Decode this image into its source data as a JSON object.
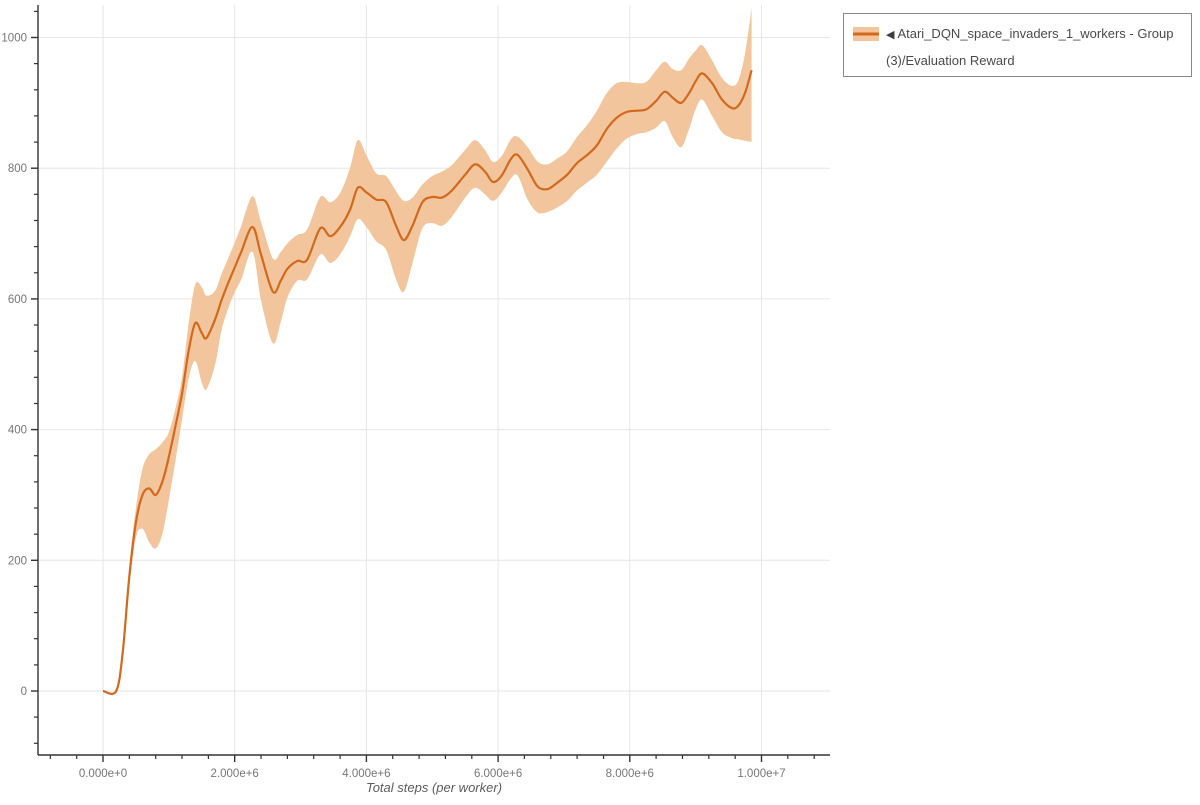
{
  "page": {
    "background": "#ffffff"
  },
  "colors": {
    "line": "#d2691e",
    "band": "#f2c59c",
    "grid": "#e6e6e6",
    "axis": "#333333",
    "tick_label": "#767676",
    "legend_border": "#888888",
    "legend_text": "#4a4a4a"
  },
  "legend": {
    "marker_glyph": "◀",
    "label": "Atari_DQN_space_invaders_1_workers - Group(3)/Evaluation Reward"
  },
  "chart_data": {
    "type": "line",
    "title": "",
    "xlabel": "Total steps (per worker)",
    "ylabel": "",
    "grid": true,
    "legend_position": "top-right",
    "x_axis": {
      "range": [
        -1000000,
        11050000
      ],
      "major_ticks": [
        0,
        2000000,
        4000000,
        6000000,
        8000000,
        10000000
      ],
      "major_tick_labels": [
        "0.000e+0",
        "2.000e+6",
        "4.000e+6",
        "6.000e+6",
        "8.000e+6",
        "1.000e+7"
      ],
      "minor_tick_step": 400000,
      "minor_tick_start": -800000,
      "minor_tick_end": 10800000
    },
    "y_axis": {
      "range": [
        -100,
        1050
      ],
      "major_ticks": [
        0,
        200,
        400,
        600,
        800,
        1000
      ],
      "major_tick_labels": [
        "0",
        "200",
        "400",
        "600",
        "800",
        "1000"
      ],
      "minor_tick_step": 40,
      "minor_tick_start": -80,
      "minor_tick_end": 1040
    },
    "series": [
      {
        "name": "Atari_DQN_space_invaders_1_workers - Group(3)/Evaluation Reward",
        "color": "#d2691e",
        "band_color": "#f2c59c",
        "x": [
          0,
          200000,
          300000,
          400000,
          500000,
          600000,
          700000,
          800000,
          900000,
          1000000,
          1100000,
          1200000,
          1300000,
          1400000,
          1500000,
          1570000,
          1700000,
          1800000,
          1900000,
          2000000,
          2100000,
          2270000,
          2400000,
          2580000,
          2700000,
          2800000,
          2950000,
          3100000,
          3300000,
          3450000,
          3600000,
          3750000,
          3870000,
          4000000,
          4150000,
          4300000,
          4450000,
          4570000,
          4700000,
          4850000,
          5000000,
          5150000,
          5300000,
          5500000,
          5650000,
          5800000,
          5920000,
          6050000,
          6200000,
          6300000,
          6450000,
          6600000,
          6750000,
          6900000,
          7050000,
          7200000,
          7350000,
          7500000,
          7650000,
          7800000,
          7950000,
          8100000,
          8250000,
          8400000,
          8530000,
          8650000,
          8780000,
          8900000,
          9000000,
          9100000,
          9250000,
          9400000,
          9550000,
          9650000,
          9750000,
          9850000
        ],
        "mean": [
          0,
          0,
          60,
          175,
          258,
          300,
          310,
          300,
          320,
          358,
          405,
          455,
          520,
          563,
          548,
          540,
          568,
          598,
          624,
          648,
          672,
          710,
          668,
          611,
          628,
          646,
          658,
          660,
          708,
          696,
          710,
          736,
          770,
          763,
          752,
          748,
          712,
          690,
          712,
          748,
          756,
          755,
          766,
          790,
          806,
          795,
          779,
          788,
          815,
          820,
          798,
          772,
          768,
          778,
          790,
          808,
          820,
          835,
          860,
          877,
          886,
          888,
          890,
          903,
          917,
          908,
          900,
          915,
          933,
          945,
          930,
          905,
          892,
          896,
          915,
          950
        ],
        "lower": [
          0,
          0,
          55,
          160,
          235,
          248,
          228,
          218,
          240,
          292,
          352,
          415,
          478,
          505,
          472,
          462,
          498,
          552,
          585,
          610,
          630,
          672,
          598,
          532,
          565,
          602,
          628,
          630,
          668,
          655,
          668,
          695,
          722,
          710,
          688,
          675,
          630,
          611,
          655,
          708,
          716,
          712,
          726,
          755,
          770,
          760,
          750,
          762,
          785,
          788,
          752,
          732,
          733,
          740,
          750,
          766,
          778,
          790,
          810,
          830,
          845,
          852,
          855,
          862,
          872,
          848,
          832,
          860,
          890,
          905,
          880,
          855,
          846,
          844,
          842,
          840
        ],
        "upper": [
          0,
          0,
          65,
          190,
          280,
          340,
          362,
          370,
          380,
          396,
          432,
          480,
          562,
          622,
          618,
          605,
          612,
          638,
          662,
          686,
          712,
          757,
          718,
          662,
          672,
          685,
          698,
          706,
          756,
          748,
          762,
          800,
          843,
          820,
          792,
          788,
          765,
          750,
          755,
          775,
          788,
          795,
          805,
          828,
          843,
          828,
          810,
          818,
          845,
          848,
          832,
          810,
          806,
          815,
          826,
          848,
          866,
          888,
          915,
          930,
          932,
          930,
          932,
          950,
          963,
          952,
          950,
          968,
          980,
          988,
          965,
          938,
          926,
          935,
          975,
          1045
        ]
      }
    ]
  }
}
